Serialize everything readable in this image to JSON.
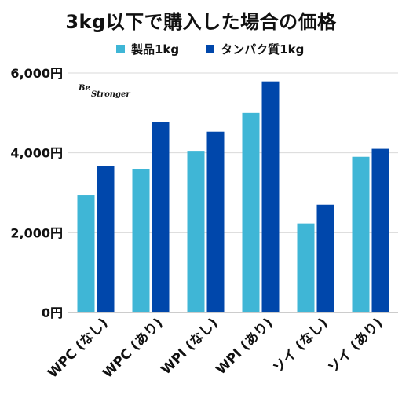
{
  "title": "3kg以下で購入した場合の価格",
  "watermark": {
    "line1": "Be",
    "line2": "Stronger"
  },
  "chart_data": {
    "type": "bar",
    "categories": [
      "WPC (なし)",
      "WPC (あり)",
      "WPI (なし)",
      "WPI (あり)",
      "ソイ (なし)",
      "ソイ (あり)"
    ],
    "series": [
      {
        "name": "製品1kg",
        "color": "#3fb6d6",
        "values": [
          2950,
          3600,
          4050,
          5000,
          2230,
          3900
        ]
      },
      {
        "name": "タンパク質1kg",
        "color": "#0047ab",
        "values": [
          3660,
          4780,
          4530,
          5790,
          2700,
          4100
        ]
      }
    ],
    "yticks": [
      "0円",
      "2,000円",
      "4,000円",
      "6,000円"
    ],
    "ytick_values": [
      0,
      2000,
      4000,
      6000
    ],
    "ylim": [
      0,
      6000
    ],
    "grid": true,
    "legend": "top"
  }
}
